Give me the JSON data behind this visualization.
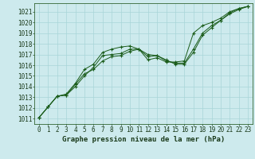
{
  "bg_color": "#cdeaed",
  "grid_color": "#a8d5d8",
  "line_color": "#1a5c1a",
  "marker_color": "#1a5c1a",
  "title": "Graphe pression niveau de la mer (hPa)",
  "title_fontsize": 6.5,
  "tick_fontsize": 5.5,
  "xlim": [
    -0.5,
    23.5
  ],
  "ylim": [
    1010.5,
    1021.8
  ],
  "xticks": [
    0,
    1,
    2,
    3,
    4,
    5,
    6,
    7,
    8,
    9,
    10,
    11,
    12,
    13,
    14,
    15,
    16,
    17,
    18,
    19,
    20,
    21,
    22,
    23
  ],
  "yticks": [
    1011,
    1012,
    1013,
    1014,
    1015,
    1016,
    1017,
    1018,
    1019,
    1020,
    1021
  ],
  "series": [
    [
      1011.1,
      1012.1,
      1013.1,
      1013.2,
      1014.0,
      1015.0,
      1015.8,
      1016.9,
      1017.0,
      1017.1,
      1017.5,
      1017.5,
      1016.8,
      1016.9,
      1016.5,
      1016.1,
      1016.1,
      1017.2,
      1018.8,
      1019.5,
      1020.2,
      1020.8,
      1021.2,
      1021.5
    ],
    [
      1011.1,
      1012.1,
      1013.1,
      1013.3,
      1014.3,
      1015.6,
      1016.1,
      1017.2,
      1017.5,
      1017.7,
      1017.8,
      1017.5,
      1016.5,
      1016.7,
      1016.3,
      1016.3,
      1016.4,
      1019.0,
      1019.7,
      1020.0,
      1020.4,
      1021.0,
      1021.3,
      1021.5
    ],
    [
      1011.1,
      1012.1,
      1013.1,
      1013.2,
      1014.2,
      1015.2,
      1015.6,
      1016.4,
      1016.8,
      1016.9,
      1017.3,
      1017.5,
      1017.0,
      1016.9,
      1016.4,
      1016.2,
      1016.2,
      1017.5,
      1019.0,
      1019.7,
      1020.2,
      1020.9,
      1021.3,
      1021.5
    ]
  ]
}
